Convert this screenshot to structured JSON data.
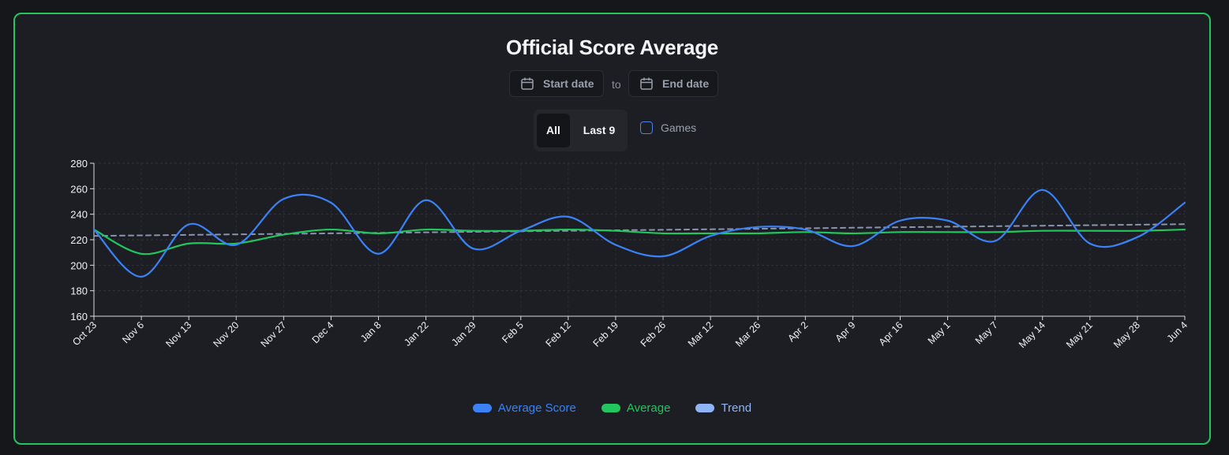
{
  "title": "Official Score Average",
  "date_range": {
    "start_placeholder": "Start date",
    "to_label": "to",
    "end_placeholder": "End date"
  },
  "filters": {
    "all_label": "All",
    "last_label": "Last 9",
    "active": "All",
    "games_label": "Games",
    "games_checked": false
  },
  "icons": {
    "date_icon": "calendar-icon"
  },
  "colors": {
    "border": "#22c55e",
    "average_score": "#3b82f6",
    "average": "#22c55e",
    "trend": "#8fb3f6",
    "trend_line": "#8a93ad"
  },
  "chart_data": {
    "type": "line",
    "categories": [
      "Oct 23",
      "Nov 6",
      "Nov 13",
      "Nov 20",
      "Nov 27",
      "Dec 4",
      "Jan 8",
      "Jan 22",
      "Jan 29",
      "Feb 5",
      "Feb 12",
      "Feb 19",
      "Feb 26",
      "Mar 12",
      "Mar 26",
      "Apr 2",
      "Apr 9",
      "Apr 16",
      "May 1",
      "May 7",
      "May 14",
      "May 21",
      "May 28",
      "Jun 4"
    ],
    "series": [
      {
        "name": "Average Score",
        "values": [
          228,
          191,
          232,
          216,
          252,
          249,
          209,
          251,
          213,
          227,
          238,
          216,
          207,
          223,
          230,
          228,
          215,
          235,
          235,
          219,
          259,
          217,
          222,
          249
        ]
      },
      {
        "name": "Average",
        "values": [
          228,
          209,
          217,
          217,
          224,
          228,
          225,
          228,
          227,
          227,
          228,
          227,
          225,
          225,
          225,
          226,
          225,
          226,
          226,
          226,
          227,
          227,
          227,
          228
        ]
      },
      {
        "name": "Trend",
        "values": [
          223,
          223.4,
          223.8,
          224.2,
          224.6,
          225,
          225.4,
          225.8,
          226.2,
          226.6,
          227,
          227.4,
          227.8,
          228.2,
          228.6,
          229,
          229.4,
          229.8,
          230.2,
          230.6,
          231,
          231.4,
          231.8,
          232.2
        ]
      }
    ],
    "ylim": [
      160,
      280
    ],
    "yticks": [
      160,
      180,
      200,
      220,
      240,
      260,
      280
    ],
    "grid": true,
    "legend_position": "bottom"
  }
}
